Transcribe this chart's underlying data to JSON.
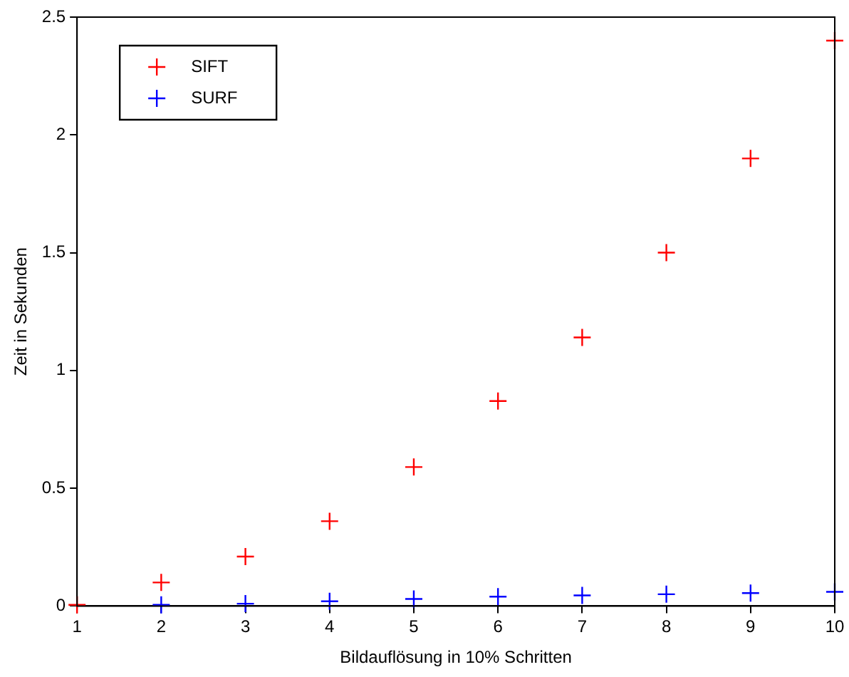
{
  "chart_data": {
    "type": "scatter",
    "xlabel": "Bildauflösung in 10% Schritten",
    "ylabel": "Zeit in Sekunden",
    "x": [
      1,
      2,
      3,
      4,
      5,
      6,
      7,
      8,
      9,
      10
    ],
    "series": [
      {
        "name": "SIFT",
        "color": "#ff0000",
        "values": [
          0.005,
          0.1,
          0.21,
          0.36,
          0.59,
          0.87,
          1.14,
          1.5,
          1.9,
          2.4
        ]
      },
      {
        "name": "SURF",
        "color": "#0000ff",
        "values": [
          null,
          0.005,
          0.01,
          0.02,
          0.03,
          0.04,
          0.045,
          0.05,
          0.055,
          0.06
        ]
      }
    ],
    "xlim": [
      1,
      10
    ],
    "xticks": [
      1,
      2,
      3,
      4,
      5,
      6,
      7,
      8,
      9,
      10
    ],
    "ylim": [
      0,
      2.5
    ],
    "yticks": [
      0,
      0.5,
      1,
      1.5,
      2,
      2.5
    ],
    "grid": false,
    "legend": "top left",
    "marker": "cross"
  }
}
